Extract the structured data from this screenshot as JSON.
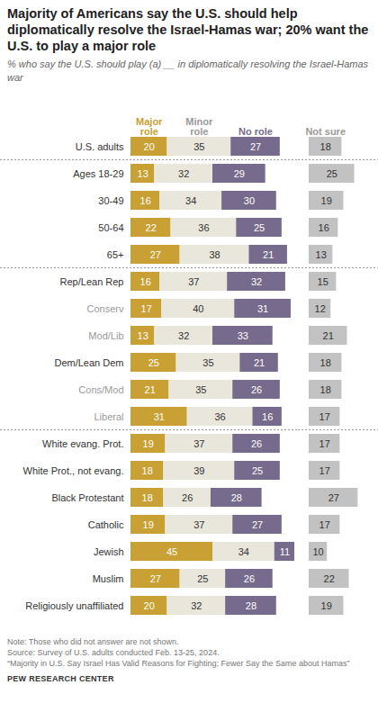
{
  "chart_data": [
    {
      "type": "bar",
      "orientation": "horizontal",
      "stacked": true,
      "data_labels": true,
      "tick_labels": "y",
      "title": "Majority of Americans say the U.S. should help diplomatically resolve the Israel-Hamas war; 20% want the U.S. to play a major role",
      "subtitle": "% who say the U.S. should play (a) __ in diplomatically resolving the Israel-Hamas war",
      "note": "Note: Those who did not answer are not shown.",
      "source": [
        "Source: Survey of U.S. adults conducted Feb. 13-25, 2024.",
        "“Majority in U.S. Say Israel Has Valid Reasons for Fighting; Fewer Say the Same about Hamas”"
      ],
      "credit": "PEW RESEARCH CENTER",
      "categories": [
        "U.S. adults",
        "Ages 18-29",
        "30-49",
        "50-64",
        "65+",
        "Rep/Lean Rep",
        "Conserv",
        "Mod/Lib",
        "Dem/Lean Dem",
        "Cons/Mod",
        "Liberal",
        "White evang. Prot.",
        "White Prot., not evang.",
        "Black Protestant",
        "Catholic",
        "Jewish",
        "Muslim",
        "Religiously unaffiliated"
      ],
      "series": [
        {
          "name": "Major role",
          "color": "#c9a033",
          "values": [
            20,
            13,
            16,
            22,
            27,
            16,
            17,
            13,
            25,
            21,
            31,
            19,
            18,
            18,
            19,
            45,
            27,
            20
          ]
        },
        {
          "name": "Minor role",
          "color": "#e9e6dc",
          "values": [
            35,
            32,
            34,
            36,
            38,
            37,
            40,
            32,
            35,
            35,
            36,
            37,
            39,
            26,
            37,
            34,
            25,
            32
          ]
        },
        {
          "name": "No role",
          "color": "#766b8c",
          "values": [
            27,
            29,
            30,
            25,
            21,
            32,
            31,
            33,
            21,
            26,
            16,
            26,
            25,
            28,
            27,
            11,
            26,
            28
          ]
        }
      ]
    },
    {
      "type": "bar",
      "orientation": "horizontal",
      "data_labels": true,
      "tick_labels": false,
      "categories": [
        "U.S. adults",
        "Ages 18-29",
        "30-49",
        "50-64",
        "65+",
        "Rep/Lean Rep",
        "Conserv",
        "Mod/Lib",
        "Dem/Lean Dem",
        "Cons/Mod",
        "Liberal",
        "White evang. Prot.",
        "White Prot., not evang.",
        "Black Protestant",
        "Catholic",
        "Jewish",
        "Muslim",
        "Religiously unaffiliated"
      ],
      "series": [
        {
          "name": "Not sure",
          "color": "#c2c2c2",
          "values": [
            18,
            25,
            19,
            16,
            13,
            15,
            12,
            21,
            18,
            18,
            17,
            17,
            17,
            27,
            17,
            10,
            22,
            19
          ]
        }
      ]
    }
  ]
}
